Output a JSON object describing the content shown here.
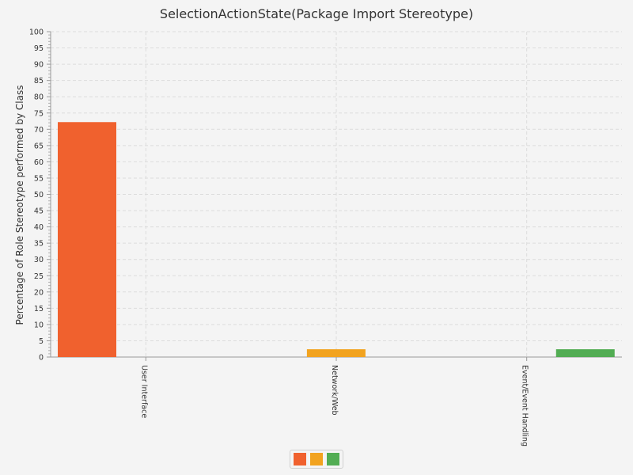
{
  "chart_data": {
    "type": "bar",
    "title": "SelectionActionState(Package Import Stereotype)",
    "xlabel": "",
    "ylabel": "Percentage of Role Stereotype performed by Class",
    "categories": [
      "User Interface",
      "Network/Web",
      "Event/Event Handling"
    ],
    "series": [
      {
        "values": [
          72.2,
          0,
          0
        ],
        "color": "#f0612e"
      },
      {
        "values": [
          0,
          2.4,
          0
        ],
        "color": "#f2a31f"
      },
      {
        "values": [
          0,
          0,
          2.4
        ],
        "color": "#52ad53"
      }
    ],
    "bars": [
      {
        "category": "User Interface",
        "value": 72.2,
        "color": "#f0612e"
      },
      {
        "category": "Network/Web",
        "value": 2.4,
        "color": "#f2a31f"
      },
      {
        "category": "Event/Event Handling",
        "value": 2.4,
        "color": "#52ad53"
      }
    ],
    "ylim": [
      0,
      100
    ],
    "yticks": [
      0,
      5,
      10,
      15,
      20,
      25,
      30,
      35,
      40,
      45,
      50,
      55,
      60,
      65,
      70,
      75,
      80,
      85,
      90,
      95,
      100
    ],
    "grid": true,
    "legend": {
      "placement": "bottom-center",
      "colors": [
        "#f0612e",
        "#f2a31f",
        "#52ad53"
      ]
    }
  }
}
